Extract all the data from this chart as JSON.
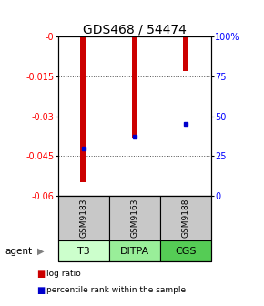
{
  "title": "GDS468 / 54474",
  "samples": [
    "GSM9183",
    "GSM9163",
    "GSM9188"
  ],
  "agents": [
    "T3",
    "DITPA",
    "CGS"
  ],
  "log_ratios": [
    -0.055,
    -0.038,
    -0.013
  ],
  "percentile_ranks": [
    30,
    37,
    45
  ],
  "ylim_left": [
    -0.06,
    0.0
  ],
  "ylim_right": [
    0,
    100
  ],
  "yticks_left": [
    0,
    -0.015,
    -0.03,
    -0.045,
    -0.06
  ],
  "yticks_right": [
    100,
    75,
    50,
    25,
    0
  ],
  "left_tick_labels": [
    "-0",
    "-0.015",
    "-0.03",
    "-0.045",
    "-0.06"
  ],
  "right_tick_labels": [
    "100%",
    "75",
    "50",
    "25",
    "0"
  ],
  "bar_color": "#cc0000",
  "square_color": "#0000cc",
  "agent_colors": [
    "#ccffcc",
    "#99ee99",
    "#55cc55"
  ],
  "sample_box_color": "#c8c8c8",
  "grid_color": "#555555",
  "legend_log_ratio": "log ratio",
  "legend_percentile": "percentile rank within the sample",
  "bar_width": 0.12,
  "title_fontsize": 10,
  "tick_fontsize": 7,
  "sample_label_fontsize": 6.5,
  "agent_fontsize": 8,
  "legend_fontsize": 6.5
}
